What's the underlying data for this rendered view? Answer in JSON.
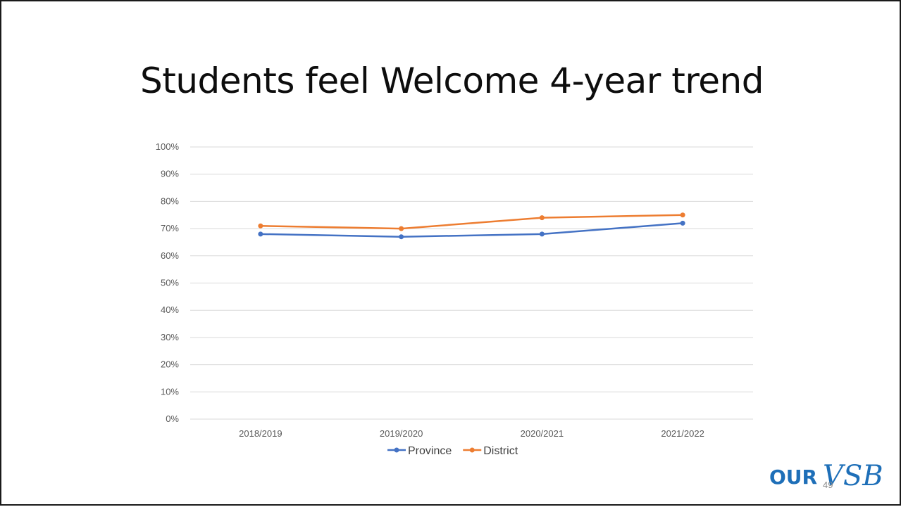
{
  "slide": {
    "title": "Students feel Welcome 4-year trend",
    "page_number": "49",
    "logo": {
      "our": "OUR",
      "vsb": "VSB"
    }
  },
  "colors": {
    "province": "#4472C4",
    "district": "#ED7D31",
    "gridline": "#D9D9D9",
    "logo": "#1E6FB8"
  },
  "chart_data": {
    "type": "line",
    "title": "",
    "xlabel": "",
    "ylabel": "",
    "categories": [
      "2018/2019",
      "2019/2020",
      "2020/2021",
      "2021/2022"
    ],
    "yticks": [
      "0%",
      "10%",
      "20%",
      "30%",
      "40%",
      "50%",
      "60%",
      "70%",
      "80%",
      "90%",
      "100%"
    ],
    "ylim": [
      0,
      100
    ],
    "grid": true,
    "legend_position": "bottom",
    "series": [
      {
        "name": "Province",
        "values": [
          68,
          67,
          68,
          72
        ],
        "color": "#4472C4"
      },
      {
        "name": "District",
        "values": [
          71,
          70,
          74,
          75
        ],
        "color": "#ED7D31"
      }
    ]
  }
}
